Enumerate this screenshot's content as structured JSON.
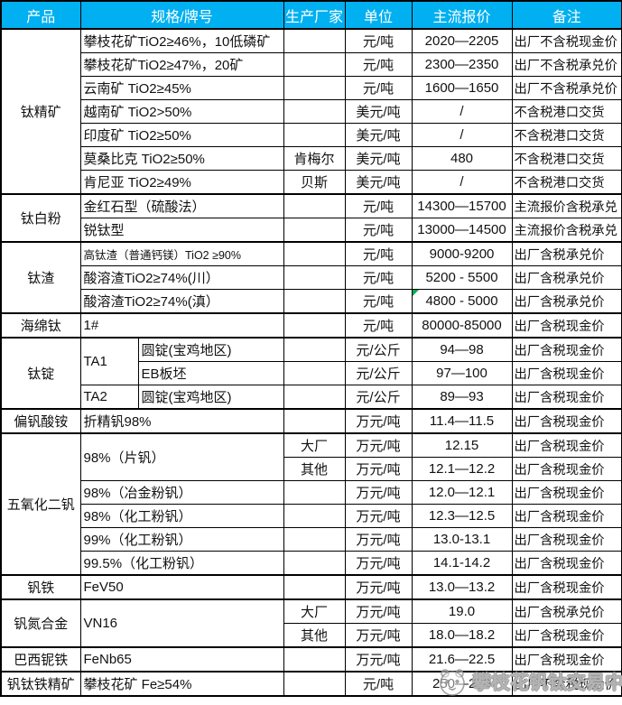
{
  "header": {
    "columns": [
      "产品",
      "规格/牌号",
      "生产厂家",
      "单位",
      "主流报价",
      "备注"
    ]
  },
  "colors": {
    "header_bg": "#00B0F0",
    "header_text": "#FFFFFF",
    "border": "#000000",
    "comment_marker_green": "#00B050",
    "watermark_gray": "#8C8C8C"
  },
  "table": {
    "groups": [
      {
        "product": "钛精矿",
        "rows": [
          {
            "spec": "攀枝花矿TiO2≥46%，10低磷矿",
            "mfr": "",
            "unit": "元/吨",
            "price": "2020—2205",
            "note": "出厂不含税现金价"
          },
          {
            "spec": "攀枝花矿TiO2≥47%，20矿",
            "mfr": "",
            "unit": "元/吨",
            "price": "2300—2350",
            "note": "出厂不含税承兑价"
          },
          {
            "spec": "云南矿 TiO2≥45%",
            "mfr": "",
            "unit": "元/吨",
            "price": "1600—1650",
            "note": "出厂不含税承兑价"
          },
          {
            "spec": "越南矿 TiO2>50%",
            "mfr": "",
            "unit": "美元/吨",
            "price": "/",
            "note": "不含税港口交货"
          },
          {
            "spec": "印度矿 TiO2≥50%",
            "mfr": "",
            "unit": "美元/吨",
            "price": "/",
            "note": "不含税港口交货"
          },
          {
            "spec": "莫桑比克 TiO2≥50%",
            "mfr": "肯梅尔",
            "unit": "美元/吨",
            "price": "480",
            "note": "不含税港口交货"
          },
          {
            "spec": "肯尼亚 TiO2≥49%",
            "mfr": "贝斯",
            "unit": "美元/吨",
            "price": "/",
            "note": "不含税港口交货"
          }
        ]
      },
      {
        "product": "钛白粉",
        "rows": [
          {
            "spec": "金红石型（硫酸法）",
            "mfr": "",
            "unit": "元/吨",
            "price": "14300—15700",
            "note": "主流报价含税承兑"
          },
          {
            "spec": "锐钛型",
            "mfr": "",
            "unit": "元/吨",
            "price": "13000—14500",
            "note": "主流报价含税承兑"
          }
        ]
      },
      {
        "product": "钛渣",
        "rows": [
          {
            "spec": "高钛渣（普通钙镁）TiO2 ≥90%",
            "small": true,
            "mfr": "",
            "unit": "元/吨",
            "price": "9000-9200",
            "note": "出厂含税承兑价"
          },
          {
            "spec": "酸溶渣TiO2≥74%(川）",
            "mfr": "",
            "unit": "元/吨",
            "price": "5200 - 5500",
            "note": "出厂含税承兑价"
          },
          {
            "spec": "酸溶渣TiO2≥74%(滇）",
            "mfr": "",
            "unit": "元/吨",
            "price": "4800 - 5000",
            "comment_marker": true,
            "note": "出厂含税承兑价"
          }
        ]
      },
      {
        "product": "海绵钛",
        "rows": [
          {
            "spec": "1#",
            "mfr": "",
            "unit": "元/吨",
            "price": "80000-85000",
            "note": "出厂含税现金价"
          }
        ]
      },
      {
        "product": "钛锭",
        "rows": [
          {
            "grade": "TA1",
            "grade_rowspan": 2,
            "form": "圆锭(宝鸡地区)",
            "mfr": "",
            "unit": "元/公斤",
            "price": "94—98",
            "note": "出厂含税现金价"
          },
          {
            "form": "EB板坯",
            "mfr": "",
            "unit": "元/公斤",
            "price": "97—100",
            "note": "出厂含税现金价"
          },
          {
            "grade": "TA2",
            "form": "圆锭(宝鸡地区)",
            "mfr": "",
            "unit": "元/公斤",
            "price": "89—93",
            "note": "出厂含税现金价"
          }
        ]
      },
      {
        "product": "偏钒酸铵",
        "rows": [
          {
            "spec": "折精钒98%",
            "mfr": "",
            "unit": "万元/吨",
            "price": "11.4—11.5",
            "note": "出厂含税现金价"
          }
        ]
      },
      {
        "product": "五氧化二钒",
        "rows": [
          {
            "spec": "98%（片钒）",
            "spec_rowspan": 2,
            "mfr": "大厂",
            "unit": "万元/吨",
            "price": "12.15",
            "note": "出厂含税现金价"
          },
          {
            "mfr": "其他",
            "unit": "万元/吨",
            "price": "12.1—12.2",
            "note": "出厂含税现金价"
          },
          {
            "spec": "98%（冶金粉钒）",
            "mfr": "",
            "unit": "万元/吨",
            "price": "12.0—12.1",
            "note": "出厂含税现金价"
          },
          {
            "spec": "98%（化工粉钒）",
            "mfr": "",
            "unit": "万元/吨",
            "price": "12.3—12.5",
            "note": "出厂含税现金价"
          },
          {
            "spec": "99%（化工粉钒）",
            "mfr": "",
            "unit": "万元/吨",
            "price": "13.0-13.1",
            "note": "出厂含税现金价"
          },
          {
            "spec": "99.5%（化工粉钒）",
            "mfr": "",
            "unit": "万元/吨",
            "price": "14.1-14.2",
            "note": "出厂含税现金价"
          }
        ]
      },
      {
        "product": "钒铁",
        "rows": [
          {
            "spec": "FeV50",
            "mfr": "",
            "unit": "万元/吨",
            "price": "13.0—13.2",
            "note": "出厂含税现金价"
          }
        ]
      },
      {
        "product": "钒氮合金",
        "rows": [
          {
            "spec": "VN16",
            "spec_rowspan": 2,
            "mfr": "大厂",
            "unit": "万元/吨",
            "price": "19.0",
            "note": "出厂含税承兑价"
          },
          {
            "mfr": "其他",
            "unit": "万元/吨",
            "price": "18.0—18.2",
            "note": "出厂含税现金价"
          }
        ]
      },
      {
        "product": "巴西铌铁",
        "rows": [
          {
            "spec": "FeNb65",
            "mfr": "",
            "unit": "万元/吨",
            "price": "21.6—22.5",
            "note": "出厂含税现金价"
          }
        ]
      },
      {
        "product": "钒钛铁精矿",
        "rows": [
          {
            "spec": "攀枝花矿 Fe≥54%",
            "mfr": "",
            "unit": "元/吨",
            "price": "250—270",
            "note": "出厂不含税现金价"
          }
        ]
      }
    ]
  },
  "watermark": {
    "text": "攀枝花钒钛交易中心",
    "logo": "panda-mascot-icon"
  }
}
